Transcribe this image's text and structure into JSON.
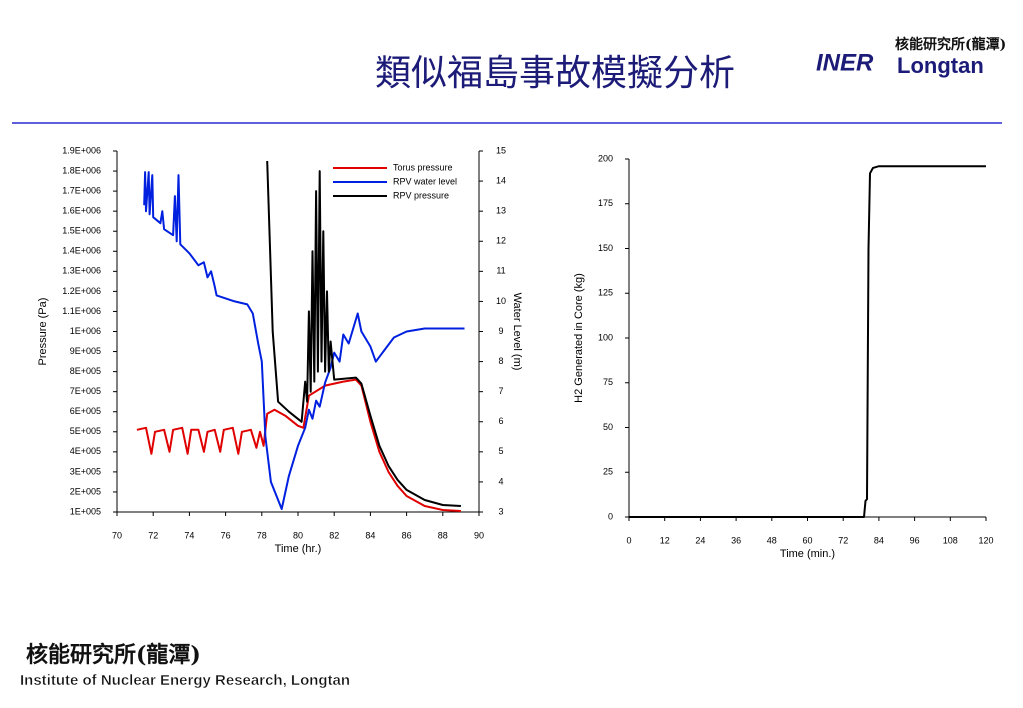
{
  "header": {
    "title": "類似福島事故模擬分析",
    "logo": {
      "mark": "INER",
      "name": "核能研究所(龍潭)",
      "place": "Longtan"
    }
  },
  "footer": {
    "name": "核能研究所(龍潭)",
    "english": "Institute of Nuclear Energy Research, Longtan"
  },
  "chart_data": [
    {
      "type": "line",
      "xlabel": "Time (hr.)",
      "ylabel": "Pressure (Pa)",
      "y2label": "Water Level (m)",
      "xlim": [
        70,
        90
      ],
      "xticks": [
        70,
        72,
        74,
        76,
        78,
        80,
        82,
        84,
        86,
        88,
        90
      ],
      "ylim": [
        100000,
        1900000
      ],
      "yticks": [
        {
          "value": 100000,
          "label": "1E+005"
        },
        {
          "value": 200000,
          "label": "2E+005"
        },
        {
          "value": 300000,
          "label": "3E+005"
        },
        {
          "value": 400000,
          "label": "4E+005"
        },
        {
          "value": 500000,
          "label": "5E+005"
        },
        {
          "value": 600000,
          "label": "6E+005"
        },
        {
          "value": 700000,
          "label": "7E+005"
        },
        {
          "value": 800000,
          "label": "8E+005"
        },
        {
          "value": 900000,
          "label": "9E+005"
        },
        {
          "value": 1000000,
          "label": "1E+006"
        },
        {
          "value": 1100000,
          "label": "1.1E+006"
        },
        {
          "value": 1200000,
          "label": "1.2E+006"
        },
        {
          "value": 1300000,
          "label": "1.3E+006"
        },
        {
          "value": 1400000,
          "label": "1.4E+006"
        },
        {
          "value": 1500000,
          "label": "1.5E+006"
        },
        {
          "value": 1600000,
          "label": "1.6E+006"
        },
        {
          "value": 1700000,
          "label": "1.7E+006"
        },
        {
          "value": 1800000,
          "label": "1.8E+006"
        },
        {
          "value": 1900000,
          "label": "1.9E+006"
        }
      ],
      "y2lim": [
        3,
        15
      ],
      "y2ticks": [
        3,
        4,
        5,
        6,
        7,
        8,
        9,
        10,
        11,
        12,
        13,
        14,
        15
      ],
      "legend": "upper right",
      "series": [
        {
          "name": "Torus pressure",
          "color": "#e00000",
          "x": [
            71.1,
            71.6,
            71.9,
            72.1,
            72.6,
            72.9,
            73.1,
            73.6,
            73.9,
            74.1,
            74.5,
            74.8,
            75.0,
            75.4,
            75.7,
            75.9,
            76.4,
            76.7,
            76.9,
            77.4,
            77.7,
            77.9,
            78.1,
            78.3,
            78.7,
            79.3,
            80.0,
            80.3,
            80.6,
            81.5,
            82.5,
            83.2,
            83.5,
            84.0,
            84.5,
            85.0,
            85.5,
            86.0,
            87.0,
            88.0,
            89.0
          ],
          "values": [
            510000,
            520000,
            390000,
            500000,
            510000,
            400000,
            510000,
            520000,
            390000,
            510000,
            510000,
            400000,
            500000,
            510000,
            400000,
            510000,
            520000,
            390000,
            500000,
            510000,
            420000,
            500000,
            430000,
            590000,
            610000,
            580000,
            530000,
            520000,
            680000,
            730000,
            750000,
            760000,
            730000,
            550000,
            400000,
            300000,
            230000,
            180000,
            130000,
            110000,
            105000
          ]
        },
        {
          "name": "RPV water level",
          "color": "#0020e0",
          "axis": "y2",
          "x": [
            71.5,
            71.55,
            71.6,
            71.75,
            71.8,
            71.95,
            72.0,
            72.4,
            72.5,
            72.6,
            73.1,
            73.2,
            73.3,
            73.4,
            73.5,
            74.0,
            74.5,
            74.8,
            75.0,
            75.2,
            75.4,
            75.5,
            76.5,
            77.2,
            77.5,
            77.8,
            78.0,
            78.2,
            78.5,
            79.1,
            79.5,
            80.0,
            80.4,
            80.6,
            80.8,
            81.0,
            81.2,
            81.5,
            81.8,
            82.0,
            82.3,
            82.5,
            82.8,
            83.0,
            83.3,
            83.5,
            84.0,
            84.3,
            84.8,
            85.3,
            86.0,
            87.0,
            88.0,
            89.2
          ],
          "values": [
            13.2,
            14.3,
            13.0,
            14.3,
            12.9,
            14.2,
            12.8,
            12.6,
            13.0,
            12.4,
            12.2,
            13.5,
            12.0,
            14.2,
            11.9,
            11.6,
            11.2,
            11.3,
            10.8,
            11.0,
            10.5,
            10.2,
            10.0,
            9.9,
            9.6,
            8.6,
            8.0,
            5.5,
            4.0,
            3.1,
            4.2,
            5.2,
            5.8,
            6.4,
            6.1,
            6.7,
            6.5,
            7.3,
            7.8,
            8.3,
            8.0,
            8.9,
            8.6,
            9.0,
            9.6,
            9.0,
            8.5,
            8.0,
            8.4,
            8.8,
            9.0,
            9.1,
            9.1,
            9.1
          ]
        },
        {
          "name": "RPV pressure",
          "color": "#000000",
          "x": [
            78.3,
            78.6,
            78.9,
            79.5,
            80.2,
            80.4,
            80.5,
            80.6,
            80.7,
            80.8,
            80.9,
            81.0,
            81.1,
            81.2,
            81.3,
            81.4,
            81.5,
            81.6,
            81.7,
            81.8,
            82.0,
            83.2,
            83.5,
            84.0,
            84.5,
            85.0,
            85.5,
            86.0,
            87.0,
            88.0,
            89.0
          ],
          "values": [
            1850000,
            1000000,
            650000,
            600000,
            550000,
            750000,
            650000,
            1100000,
            700000,
            1400000,
            750000,
            1700000,
            800000,
            1800000,
            850000,
            1500000,
            800000,
            1200000,
            800000,
            950000,
            760000,
            770000,
            740000,
            580000,
            430000,
            330000,
            260000,
            210000,
            160000,
            135000,
            130000
          ]
        }
      ]
    },
    {
      "type": "line",
      "xlabel": "Time (min.)",
      "ylabel": "H2 Generated in Core (kg)",
      "xlim": [
        0,
        120
      ],
      "xticks": [
        0,
        12,
        24,
        36,
        48,
        60,
        72,
        84,
        96,
        108,
        120
      ],
      "ylim": [
        0,
        200
      ],
      "yticks": [
        0,
        25,
        50,
        75,
        100,
        125,
        150,
        175,
        200
      ],
      "series": [
        {
          "color": "#000000",
          "x": [
            0,
            79,
            79.5,
            80,
            80.5,
            81,
            82,
            84,
            120
          ],
          "values": [
            0,
            0,
            9,
            10,
            150,
            192,
            195,
            196,
            196
          ]
        }
      ]
    }
  ]
}
